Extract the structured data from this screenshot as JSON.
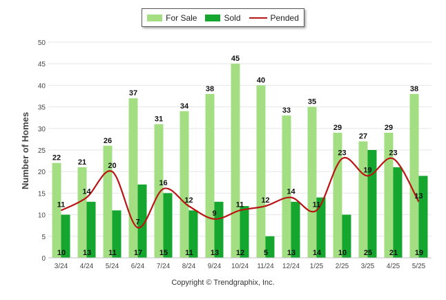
{
  "legend": {
    "for_sale": "For Sale",
    "sold": "Sold",
    "pended": "Pended"
  },
  "copyright": "Copyright © Trendgraphix, Inc.",
  "colors": {
    "for_sale": "#a3df82",
    "sold": "#14a62e",
    "pended": "#b81414"
  },
  "chart_data": {
    "type": "bar",
    "categories": [
      "3/24",
      "4/24",
      "5/24",
      "6/24",
      "7/24",
      "8/24",
      "9/24",
      "10/24",
      "11/24",
      "12/24",
      "1/25",
      "2/25",
      "3/25",
      "4/25",
      "5/25"
    ],
    "series": [
      {
        "name": "For Sale",
        "type": "bar",
        "values": [
          22,
          21,
          26,
          37,
          31,
          34,
          38,
          45,
          40,
          33,
          35,
          29,
          27,
          29,
          38
        ]
      },
      {
        "name": "Sold",
        "type": "bar",
        "values": [
          10,
          13,
          11,
          17,
          15,
          11,
          13,
          12,
          5,
          13,
          14,
          10,
          25,
          21,
          19
        ]
      },
      {
        "name": "Pended",
        "type": "line",
        "values": [
          11,
          14,
          20,
          7,
          16,
          12,
          9,
          11,
          12,
          14,
          11,
          23,
          19,
          23,
          13
        ]
      }
    ],
    "ylabel": "Number of Homes",
    "xlabel": "",
    "ylim": [
      0,
      50
    ],
    "yticks": [
      0,
      5,
      10,
      15,
      20,
      25,
      30,
      35,
      40,
      45,
      50
    ],
    "grid": true,
    "legend_position": "top-center"
  }
}
